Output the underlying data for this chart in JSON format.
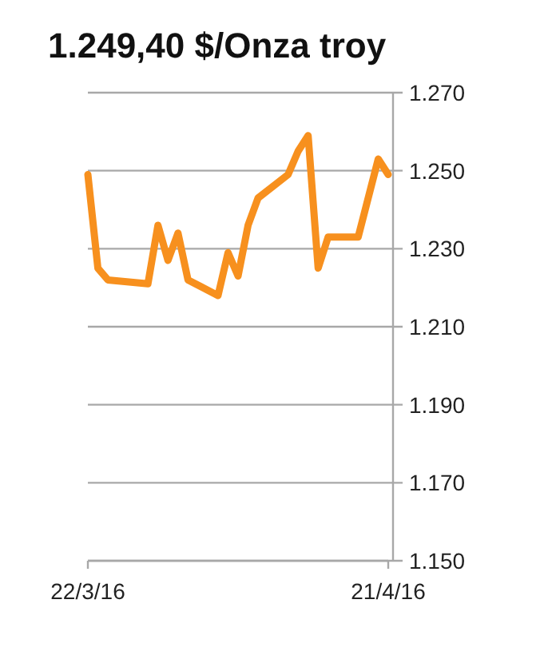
{
  "chart_data": {
    "type": "line",
    "title": "1.249,40 $/Onza troy",
    "x": [
      "2016-03-22",
      "2016-03-23",
      "2016-03-24",
      "2016-03-28",
      "2016-03-29",
      "2016-03-30",
      "2016-03-31",
      "2016-04-01",
      "2016-04-04",
      "2016-04-05",
      "2016-04-06",
      "2016-04-07",
      "2016-04-08",
      "2016-04-11",
      "2016-04-12",
      "2016-04-13",
      "2016-04-14",
      "2016-04-15",
      "2016-04-18",
      "2016-04-20",
      "2016-04-21"
    ],
    "series": [
      {
        "color": "#f7901e",
        "values": [
          1249,
          1225,
          1222,
          1221,
          1236,
          1227,
          1234,
          1222,
          1218,
          1229,
          1223,
          1236,
          1243,
          1249,
          1255,
          1259,
          1225,
          1233,
          1233,
          1253,
          1249
        ]
      }
    ],
    "xlim": [
      "2016-03-22",
      "2016-04-21"
    ],
    "xticks": [
      {
        "value": "2016-03-22",
        "label": "22/3/16"
      },
      {
        "value": "2016-04-21",
        "label": "21/4/16"
      }
    ],
    "ylim": [
      1150,
      1270
    ],
    "yticks": [
      {
        "value": 1150,
        "label": "1.150"
      },
      {
        "value": 1170,
        "label": "1.170"
      },
      {
        "value": 1190,
        "label": "1.190"
      },
      {
        "value": 1210,
        "label": "1.210"
      },
      {
        "value": 1230,
        "label": "1.230"
      },
      {
        "value": 1250,
        "label": "1.250"
      },
      {
        "value": 1270,
        "label": "1.270"
      }
    ],
    "grid": "y",
    "line_style": "solid",
    "marker": "none"
  }
}
